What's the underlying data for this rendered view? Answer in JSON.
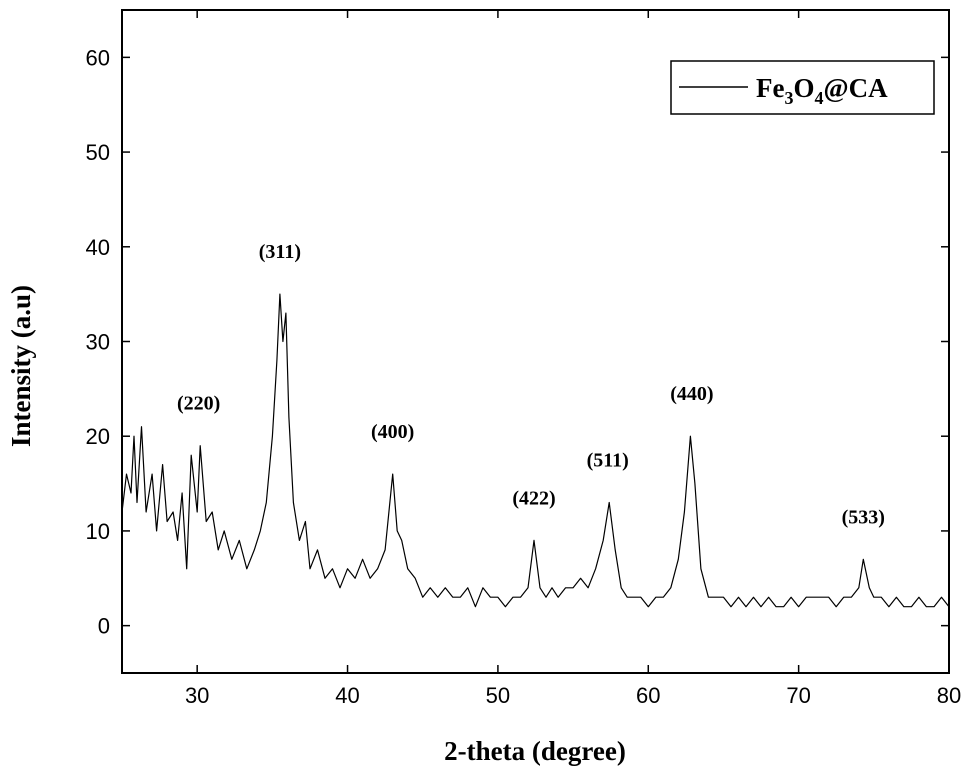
{
  "chart_data": {
    "type": "line",
    "xlabel": "2-theta (degree)",
    "ylabel": "Intensity (a.u)",
    "xlim": [
      25,
      80
    ],
    "ylim": [
      -5,
      65
    ],
    "x_ticks": [
      "30",
      "40",
      "50",
      "60",
      "70",
      "80"
    ],
    "y_ticks": [
      "0",
      "10",
      "20",
      "30",
      "40",
      "50",
      "60"
    ],
    "legend": {
      "position": "top-right",
      "formula_parts": [
        "Fe",
        "3",
        "O",
        "4",
        "@CA"
      ]
    },
    "line_color": "#000000",
    "grid": false,
    "peaks": [
      {
        "label": "(220)",
        "x": 30.1,
        "y": 19
      },
      {
        "label": "(311)",
        "x": 35.5,
        "y": 35
      },
      {
        "label": "(400)",
        "x": 43.0,
        "y": 16
      },
      {
        "label": "(422)",
        "x": 52.4,
        "y": 9
      },
      {
        "label": "(511)",
        "x": 57.3,
        "y": 13
      },
      {
        "label": "(440)",
        "x": 62.9,
        "y": 20
      },
      {
        "label": "(533)",
        "x": 74.3,
        "y": 7
      }
    ],
    "series": [
      {
        "values": [
          [
            25.0,
            12
          ],
          [
            25.3,
            16
          ],
          [
            25.6,
            14
          ],
          [
            25.8,
            20
          ],
          [
            26.0,
            13
          ],
          [
            26.3,
            21
          ],
          [
            26.6,
            12
          ],
          [
            27.0,
            16
          ],
          [
            27.3,
            10
          ],
          [
            27.7,
            17
          ],
          [
            28.0,
            11
          ],
          [
            28.4,
            12
          ],
          [
            28.7,
            9
          ],
          [
            29.0,
            14
          ],
          [
            29.3,
            6
          ],
          [
            29.6,
            18
          ],
          [
            30.0,
            12
          ],
          [
            30.2,
            19
          ],
          [
            30.6,
            11
          ],
          [
            31.0,
            12
          ],
          [
            31.4,
            8
          ],
          [
            31.8,
            10
          ],
          [
            32.3,
            7
          ],
          [
            32.8,
            9
          ],
          [
            33.3,
            6
          ],
          [
            33.8,
            8
          ],
          [
            34.2,
            10
          ],
          [
            34.6,
            13
          ],
          [
            35.0,
            20
          ],
          [
            35.3,
            28
          ],
          [
            35.5,
            35
          ],
          [
            35.7,
            30
          ],
          [
            35.9,
            33
          ],
          [
            36.1,
            22
          ],
          [
            36.4,
            13
          ],
          [
            36.8,
            9
          ],
          [
            37.2,
            11
          ],
          [
            37.5,
            6
          ],
          [
            38.0,
            8
          ],
          [
            38.5,
            5
          ],
          [
            39.0,
            6
          ],
          [
            39.5,
            4
          ],
          [
            40.0,
            6
          ],
          [
            40.5,
            5
          ],
          [
            41.0,
            7
          ],
          [
            41.5,
            5
          ],
          [
            42.0,
            6
          ],
          [
            42.5,
            8
          ],
          [
            43.0,
            16
          ],
          [
            43.3,
            10
          ],
          [
            43.6,
            9
          ],
          [
            44.0,
            6
          ],
          [
            44.5,
            5
          ],
          [
            45.0,
            3
          ],
          [
            45.5,
            4
          ],
          [
            46.0,
            3
          ],
          [
            46.5,
            4
          ],
          [
            47.0,
            3
          ],
          [
            47.5,
            3
          ],
          [
            48.0,
            4
          ],
          [
            48.5,
            2
          ],
          [
            49.0,
            4
          ],
          [
            49.5,
            3
          ],
          [
            50.0,
            3
          ],
          [
            50.5,
            2
          ],
          [
            51.0,
            3
          ],
          [
            51.5,
            3
          ],
          [
            52.0,
            4
          ],
          [
            52.4,
            9
          ],
          [
            52.8,
            4
          ],
          [
            53.2,
            3
          ],
          [
            53.6,
            4
          ],
          [
            54.0,
            3
          ],
          [
            54.5,
            4
          ],
          [
            55.0,
            4
          ],
          [
            55.5,
            5
          ],
          [
            56.0,
            4
          ],
          [
            56.5,
            6
          ],
          [
            57.0,
            9
          ],
          [
            57.4,
            13
          ],
          [
            57.8,
            8
          ],
          [
            58.2,
            4
          ],
          [
            58.6,
            3
          ],
          [
            59.0,
            3
          ],
          [
            59.5,
            3
          ],
          [
            60.0,
            2
          ],
          [
            60.5,
            3
          ],
          [
            61.0,
            3
          ],
          [
            61.5,
            4
          ],
          [
            62.0,
            7
          ],
          [
            62.4,
            12
          ],
          [
            62.8,
            20
          ],
          [
            63.1,
            15
          ],
          [
            63.5,
            6
          ],
          [
            64.0,
            3
          ],
          [
            64.5,
            3
          ],
          [
            65.0,
            3
          ],
          [
            65.5,
            2
          ],
          [
            66.0,
            3
          ],
          [
            66.5,
            2
          ],
          [
            67.0,
            3
          ],
          [
            67.5,
            2
          ],
          [
            68.0,
            3
          ],
          [
            68.5,
            2
          ],
          [
            69.0,
            2
          ],
          [
            69.5,
            3
          ],
          [
            70.0,
            2
          ],
          [
            70.5,
            3
          ],
          [
            71.0,
            3
          ],
          [
            71.5,
            3
          ],
          [
            72.0,
            3
          ],
          [
            72.5,
            2
          ],
          [
            73.0,
            3
          ],
          [
            73.5,
            3
          ],
          [
            74.0,
            4
          ],
          [
            74.3,
            7
          ],
          [
            74.7,
            4
          ],
          [
            75.0,
            3
          ],
          [
            75.5,
            3
          ],
          [
            76.0,
            2
          ],
          [
            76.5,
            3
          ],
          [
            77.0,
            2
          ],
          [
            77.5,
            2
          ],
          [
            78.0,
            3
          ],
          [
            78.5,
            2
          ],
          [
            79.0,
            2
          ],
          [
            79.5,
            3
          ],
          [
            80.0,
            2
          ]
        ]
      }
    ]
  }
}
